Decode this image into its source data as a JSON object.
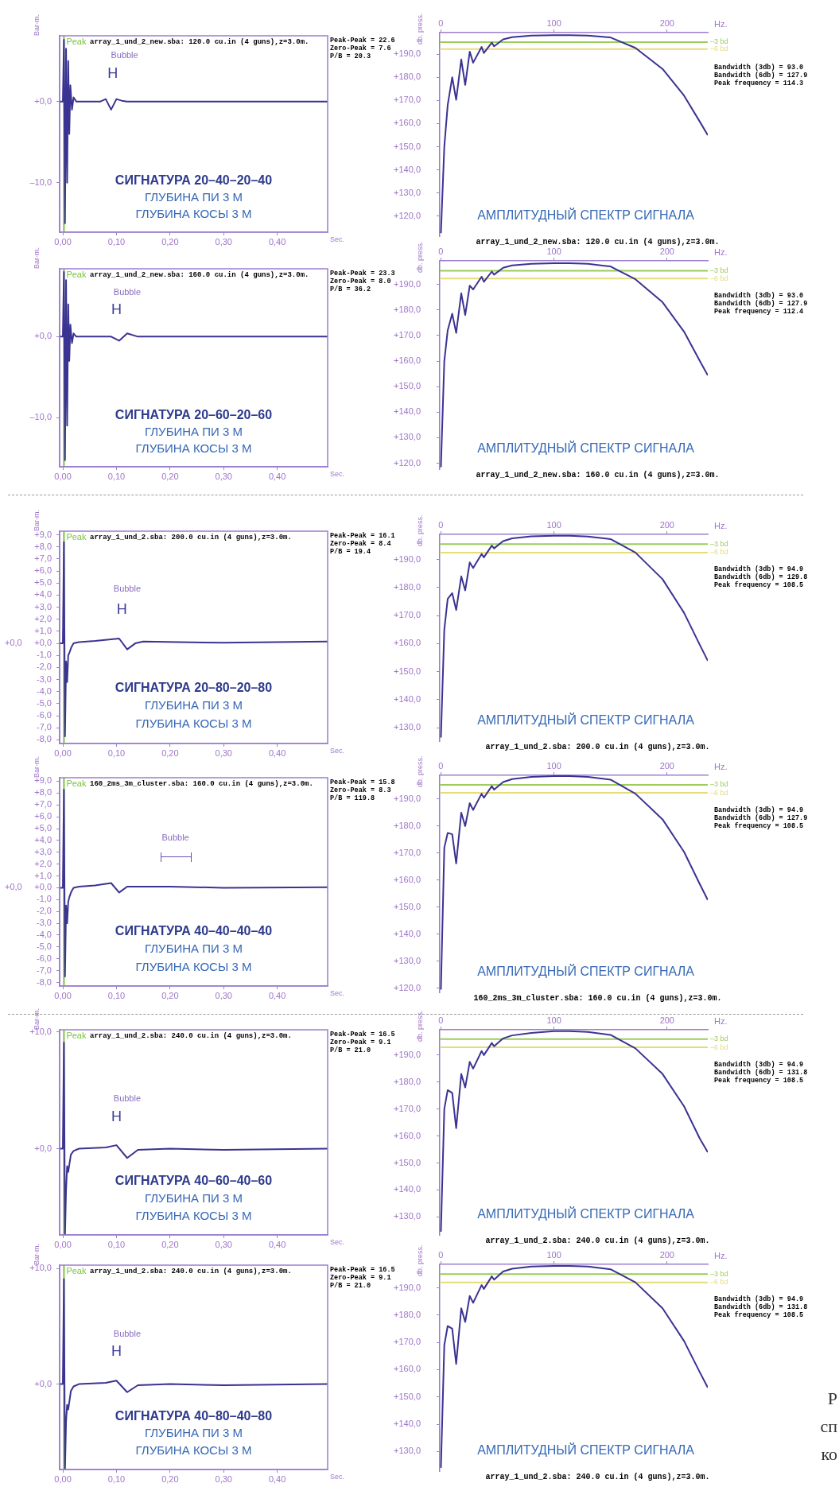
{
  "chart_data": [
    {
      "type": "line",
      "title": "array_1_und_2_new.sba: 120.0 cu.in (4 guns),z=3.0m.",
      "xlabel": "Sec.",
      "ylabel": "Bar-m.",
      "x": [
        -0.006,
        0,
        0.002,
        0.004,
        0.006,
        0.008,
        0.01,
        0.012,
        0.014,
        0.017,
        0.02,
        0.025,
        0.07,
        0.08,
        0.09,
        0.1,
        0.11,
        0.12,
        0.494
      ],
      "series": [
        {
          "color": "#3b3391",
          "values": [
            0,
            0,
            7.6,
            -15,
            6.5,
            -10,
            5,
            -4,
            2,
            -1,
            0.5,
            0,
            0,
            0.3,
            -1,
            0.3,
            0.1,
            0,
            0
          ]
        }
      ],
      "xlim": [
        -0.006,
        0.494
      ],
      "xticks": [
        {
          "value": 0,
          "label": "0,00"
        },
        {
          "value": 0.1,
          "label": "0,10"
        },
        {
          "value": 0.2,
          "label": "0,20"
        },
        {
          "value": 0.3,
          "label": "0,30"
        },
        {
          "value": 0.4,
          "label": "0,40"
        }
      ],
      "ylim": [
        -16.1,
        8.1
      ],
      "yticks": [
        {
          "value": 0,
          "label": "+0,0"
        },
        {
          "value": -10,
          "label": "–10,0"
        }
      ],
      "ref_lines": [
        {
          "axis": "x",
          "value": 0.002,
          "label": "Peak",
          "color": "#7cc242"
        }
      ],
      "annotations": [
        "Peak-Peak = 22.6",
        "Zero-Peak = 7.6",
        "P/B = 20.3",
        "СИГНАТУРА 20–40–20–40",
        "ГЛУБИНА ПИ 3 М",
        "ГЛУБИНА КОСЫ 3 М",
        "Bubble",
        "H"
      ]
    },
    {
      "type": "line",
      "subtitle": "array_1_und_2_new.sba: 120.0 cu.in (4 guns),z=3.0m.",
      "xlabel": "Hz.",
      "ylabel": "db. press.",
      "x": [
        0,
        3,
        6,
        10,
        13.5,
        18,
        21.5,
        25.5,
        28.5,
        36,
        38,
        45,
        47,
        55,
        63,
        80,
        100,
        114,
        130,
        150,
        172,
        196,
        215,
        229,
        236
      ],
      "series": [
        {
          "color": "#3b3391",
          "values": [
            112.7,
            150,
            168,
            180,
            170.3,
            187.7,
            176.7,
            191.1,
            186.3,
            193.1,
            190.5,
            195,
            193.4,
            196.4,
            197.3,
            198,
            198.2,
            198.2,
            198,
            197.2,
            192.7,
            183.6,
            172.1,
            160.8,
            155
          ]
        }
      ],
      "xlim": [
        -1,
        236
      ],
      "xticks": [
        0,
        100,
        200
      ],
      "ylim": [
        111.4,
        199.3
      ],
      "yticks": [
        {
          "value": 120,
          "label": "+120,0"
        },
        {
          "value": 130,
          "label": "+130,0"
        },
        {
          "value": 140,
          "label": "+140,0"
        },
        {
          "value": 150,
          "label": "+150,0"
        },
        {
          "value": 160,
          "label": "+160,0"
        },
        {
          "value": 170,
          "label": "+170,0"
        },
        {
          "value": 180,
          "label": "+180,0"
        },
        {
          "value": 190,
          "label": "+190,0"
        }
      ],
      "ref_lines": [
        {
          "axis": "y",
          "value": 195.2,
          "label": "–3 bd",
          "color": "#9ccc5a"
        },
        {
          "axis": "y",
          "value": 192.2,
          "label": "–6 bd",
          "color": "#e6dc78"
        }
      ],
      "annotations": [
        "Bandwidth (3db) = 93.0",
        "Bandwidth (6db) = 127.9",
        "Peak frequency = 114.3",
        "АМПЛИТУДНЫЙ СПЕКТР СИГНАЛА"
      ]
    },
    {
      "type": "line",
      "title": "array_1_und_2_new.sba: 160.0 cu.in (4 guns),z=3.0m.",
      "xlabel": "Sec.",
      "ylabel": "Bar-m.",
      "x": [
        -0.006,
        0,
        0.002,
        0.004,
        0.006,
        0.008,
        0.01,
        0.012,
        0.014,
        0.017,
        0.02,
        0.025,
        0.09,
        0.105,
        0.12,
        0.14,
        0.494
      ],
      "series": [
        {
          "color": "#3b3391",
          "values": [
            0,
            0,
            8,
            -15.3,
            7,
            -11,
            4,
            -3,
            1.5,
            -0.8,
            0.4,
            0,
            0,
            -0.5,
            0.4,
            0,
            0
          ]
        }
      ],
      "xlim": [
        -0.006,
        0.494
      ],
      "xticks": [
        {
          "value": 0,
          "label": "0,00"
        },
        {
          "value": 0.1,
          "label": "0,10"
        },
        {
          "value": 0.2,
          "label": "0,20"
        },
        {
          "value": 0.3,
          "label": "0,30"
        },
        {
          "value": 0.4,
          "label": "0,40"
        }
      ],
      "ylim": [
        -16.1,
        8.4
      ],
      "yticks": [
        {
          "value": 0,
          "label": "+0,0"
        },
        {
          "value": -10,
          "label": "–10,0"
        }
      ],
      "ref_lines": [
        {
          "axis": "x",
          "value": 0.002,
          "label": "Peak",
          "color": "#7cc242"
        }
      ],
      "annotations": [
        "Peak-Peak = 23.3",
        "Zero-Peak = 8.0",
        "P/B = 36.2",
        "СИГНАТУРА 20–60–20–60",
        "ГЛУБИНА ПИ 3 М",
        "ГЛУБИНА КОСЫ 3 М",
        "Bubble",
        "H"
      ]
    },
    {
      "type": "line",
      "subtitle": "array_1_und_2_new.sba: 160.0 cu.in (4 guns),z=3.0m.",
      "xlabel": "Hz.",
      "ylabel": "db. press.",
      "x": [
        0,
        3,
        6,
        10,
        13.5,
        18,
        21.5,
        25.5,
        28.5,
        36,
        38,
        45,
        47,
        55,
        63,
        80,
        100,
        114,
        130,
        150,
        172,
        196,
        215,
        229,
        236
      ],
      "series": [
        {
          "color": "#3b3391",
          "values": [
            118.5,
            160,
            172,
            178.5,
            171,
            186.5,
            178,
            189.5,
            188,
            193,
            191,
            195,
            193.8,
            196.5,
            197.4,
            198,
            198.3,
            198.3,
            198,
            197,
            192,
            183,
            171.5,
            160,
            154.4
          ]
        }
      ],
      "xlim": [
        -1,
        236
      ],
      "xticks": [
        0,
        100,
        200
      ],
      "ylim": [
        117.7,
        199.2
      ],
      "yticks": [
        {
          "value": 120,
          "label": "+120,0"
        },
        {
          "value": 130,
          "label": "+130,0"
        },
        {
          "value": 140,
          "label": "+140,0"
        },
        {
          "value": 150,
          "label": "+150,0"
        },
        {
          "value": 160,
          "label": "+160,0"
        },
        {
          "value": 170,
          "label": "+170,0"
        },
        {
          "value": 180,
          "label": "+180,0"
        },
        {
          "value": 190,
          "label": "+190,0"
        }
      ],
      "ref_lines": [
        {
          "axis": "y",
          "value": 195.3,
          "label": "–3 bd",
          "color": "#9ccc5a"
        },
        {
          "axis": "y",
          "value": 192.3,
          "label": "–6 bd",
          "color": "#e6dc78"
        }
      ],
      "annotations": [
        "Bandwidth (3db) = 93.0",
        "Bandwidth (6db) = 127.9",
        "Peak frequency = 112.4",
        "АМПЛИТУДНЫЙ СПЕКТР СИГНАЛА"
      ]
    },
    {
      "type": "line",
      "title": "array_1_und_2.sba: 200.0 cu.in (4 guns),z=3.0m.",
      "xlabel": "Sec.",
      "ylabel": "Bar-m.",
      "x": [
        -0.006,
        0,
        0.002,
        0.004,
        0.006,
        0.008,
        0.01,
        0.012,
        0.016,
        0.02,
        0.03,
        0.06,
        0.105,
        0.12,
        0.135,
        0.15,
        0.3,
        0.494
      ],
      "series": [
        {
          "color": "#3b3391",
          "values": [
            0,
            0,
            8.4,
            -7.7,
            -1.5,
            -3.2,
            -1,
            -0.8,
            -0.3,
            0,
            0.1,
            0.2,
            0.4,
            -0.5,
            0,
            0.15,
            0.05,
            0.15
          ]
        }
      ],
      "xlim": [
        -0.006,
        0.494
      ],
      "xticks": [
        {
          "value": 0,
          "label": "0,00"
        },
        {
          "value": 0.1,
          "label": "0,10"
        },
        {
          "value": 0.2,
          "label": "0,20"
        },
        {
          "value": 0.3,
          "label": "0,30"
        },
        {
          "value": 0.4,
          "label": "0,40"
        }
      ],
      "ylim": [
        -8.3,
        9.3
      ],
      "yticks": [
        {
          "value": 9,
          "label": "+9,0"
        },
        {
          "value": 8,
          "label": "+8,0"
        },
        {
          "value": 7,
          "label": "+7,0"
        },
        {
          "value": 6,
          "label": "+6,0"
        },
        {
          "value": 5,
          "label": "+5,0"
        },
        {
          "value": 4,
          "label": "+4,0"
        },
        {
          "value": 3,
          "label": "+3,0"
        },
        {
          "value": 2,
          "label": "+2,0"
        },
        {
          "value": 1,
          "label": "+1,0"
        },
        {
          "value": 0,
          "label": "+0,0"
        },
        {
          "value": -1,
          "label": "-1,0"
        },
        {
          "value": -2,
          "label": "-2,0"
        },
        {
          "value": -3,
          "label": "-3,0"
        },
        {
          "value": -4,
          "label": "-4,0"
        },
        {
          "value": -5,
          "label": "-5,0"
        },
        {
          "value": -6,
          "label": "-6,0"
        },
        {
          "value": -7,
          "label": "-7,0"
        },
        {
          "value": -8,
          "label": "-8,0"
        }
      ],
      "ref_lines": [
        {
          "axis": "x",
          "value": 0.002,
          "label": "Peak",
          "color": "#7cc242"
        }
      ],
      "annotations": [
        "Peak-Peak = 16.1",
        "Zero-Peak = 8.4",
        "P/B = 19.4",
        "СИГНАТУРА 20–80–20–80",
        "ГЛУБИНА ПИ 3 М",
        "ГЛУБИНА КОСЫ 3 М",
        "Bubble",
        "H",
        "+0,0"
      ]
    },
    {
      "type": "line",
      "subtitle": "array_1_und_2.sba: 200.0 cu.in (4 guns),z=3.0m.",
      "xlabel": "Hz.",
      "ylabel": "db. press.",
      "x": [
        0,
        3,
        6,
        10,
        13.5,
        18,
        21.5,
        25.5,
        28.5,
        36,
        38,
        45,
        47,
        55,
        63,
        80,
        100,
        114,
        130,
        150,
        172,
        196,
        215,
        229,
        236
      ],
      "series": [
        {
          "color": "#3b3391",
          "values": [
            126.5,
            165,
            176,
            178,
            172,
            184,
            179,
            189,
            187,
            192,
            190.8,
            195,
            194,
            196.6,
            197.6,
            198.3,
            198.5,
            198.5,
            198.2,
            197.3,
            192.5,
            183,
            171,
            159.5,
            153.9
          ]
        }
      ],
      "xlim": [
        -1,
        236
      ],
      "xticks": [
        0,
        100,
        200
      ],
      "ylim": [
        125.2,
        199
      ],
      "yticks": [
        {
          "value": 130,
          "label": "+130,0"
        },
        {
          "value": 140,
          "label": "+140,0"
        },
        {
          "value": 150,
          "label": "+150,0"
        },
        {
          "value": 160,
          "label": "+160,0"
        },
        {
          "value": 170,
          "label": "+170,0"
        },
        {
          "value": 180,
          "label": "+180,0"
        },
        {
          "value": 190,
          "label": "+190,0"
        }
      ],
      "ref_lines": [
        {
          "axis": "y",
          "value": 195.5,
          "label": "–3 bd",
          "color": "#9ccc5a"
        },
        {
          "axis": "y",
          "value": 192.5,
          "label": "–6 bd",
          "color": "#e6dc78"
        }
      ],
      "annotations": [
        "Bandwidth (3db) = 94.9",
        "Bandwidth (6db) = 129.8",
        "Peak frequency = 108.5",
        "АМПЛИТУДНЫЙ СПЕКТР СИГНАЛА"
      ]
    },
    {
      "type": "line",
      "title": "160_2ms_3m_cluster.sba: 160.0 cu.in (4 guns),z=3.0m.",
      "xlabel": "Sec.",
      "ylabel": "Bar-m.",
      "x": [
        -0.006,
        0,
        0.002,
        0.004,
        0.006,
        0.008,
        0.01,
        0.012,
        0.016,
        0.02,
        0.03,
        0.06,
        0.09,
        0.105,
        0.12,
        0.2,
        0.3,
        0.494
      ],
      "series": [
        {
          "color": "#3b3391",
          "values": [
            0,
            0,
            8.3,
            -7.5,
            -1.5,
            -3,
            -1.2,
            -0.8,
            -0.3,
            0,
            0.1,
            0.2,
            0.4,
            -0.4,
            0.1,
            0.1,
            0,
            0.05
          ]
        }
      ],
      "xlim": [
        -0.006,
        0.494
      ],
      "xticks": [
        {
          "value": 0,
          "label": "0,00"
        },
        {
          "value": 0.1,
          "label": "0,10"
        },
        {
          "value": 0.2,
          "label": "0,20"
        },
        {
          "value": 0.3,
          "label": "0,30"
        },
        {
          "value": 0.4,
          "label": "0,40"
        }
      ],
      "ylim": [
        -8.3,
        9.3
      ],
      "yticks": [
        {
          "value": 9,
          "label": "+9,0"
        },
        {
          "value": 8,
          "label": "+8,0"
        },
        {
          "value": 7,
          "label": "+7,0"
        },
        {
          "value": 6,
          "label": "+6,0"
        },
        {
          "value": 5,
          "label": "+5,0"
        },
        {
          "value": 4,
          "label": "+4,0"
        },
        {
          "value": 3,
          "label": "+3,0"
        },
        {
          "value": 2,
          "label": "+2,0"
        },
        {
          "value": 1,
          "label": "+1,0"
        },
        {
          "value": 0,
          "label": "+0,0"
        },
        {
          "value": -1,
          "label": "-1,0"
        },
        {
          "value": -2,
          "label": "-2,0"
        },
        {
          "value": -3,
          "label": "-3,0"
        },
        {
          "value": -4,
          "label": "-4,0"
        },
        {
          "value": -5,
          "label": "-5,0"
        },
        {
          "value": -6,
          "label": "-6,0"
        },
        {
          "value": -7,
          "label": "-7,0"
        },
        {
          "value": -8,
          "label": "-8,0"
        }
      ],
      "ref_lines": [
        {
          "axis": "x",
          "value": 0.002,
          "label": "Peak",
          "color": "#7cc242"
        }
      ],
      "annotations": [
        "Peak-Peak = 15.8",
        "Zero-Peak = 8.3",
        "P/B = 119.8",
        "СИГНАТУРА 40–40–40–40",
        "ГЛУБИНА ПИ 3 М",
        "ГЛУБИНА КОСЫ 3 М",
        "Bubble",
        "+0,0"
      ]
    },
    {
      "type": "line",
      "subtitle": "160_2ms_3m_cluster.sba: 160.0 cu.in (4 guns),z=3.0m.",
      "xlabel": "Hz.",
      "ylabel": "db. press.",
      "x": [
        0,
        3,
        6,
        10,
        13.5,
        18,
        21.5,
        25.5,
        28.5,
        36,
        38,
        45,
        47,
        55,
        63,
        80,
        100,
        114,
        130,
        150,
        172,
        196,
        215,
        229,
        236
      ],
      "series": [
        {
          "color": "#3b3391",
          "values": [
            119.5,
            172,
            177.5,
            177,
            166.2,
            185,
            180,
            188.5,
            186,
            192,
            190.5,
            194.8,
            193.5,
            196.3,
            197.4,
            198.2,
            198.5,
            198.5,
            198.2,
            197.2,
            192,
            182.5,
            170.5,
            158.5,
            152.7
          ]
        }
      ],
      "xlim": [
        -1,
        236
      ],
      "xticks": [
        0,
        100,
        200
      ],
      "ylim": [
        118.5,
        198.8
      ],
      "yticks": [
        {
          "value": 120,
          "label": "+120,0"
        },
        {
          "value": 130,
          "label": "+130,0"
        },
        {
          "value": 140,
          "label": "+140,0"
        },
        {
          "value": 150,
          "label": "+150,0"
        },
        {
          "value": 160,
          "label": "+160,0"
        },
        {
          "value": 170,
          "label": "+170,0"
        },
        {
          "value": 180,
          "label": "+180,0"
        },
        {
          "value": 190,
          "label": "+190,0"
        }
      ],
      "ref_lines": [
        {
          "axis": "y",
          "value": 195.3,
          "label": "–3 bd",
          "color": "#9ccc5a"
        },
        {
          "axis": "y",
          "value": 192.3,
          "label": "–6 bd",
          "color": "#e6dc78"
        }
      ],
      "annotations": [
        "Bandwidth (3db) = 94.9",
        "Bandwidth (6db) = 127.9",
        "Peak frequency = 108.5",
        "АМПЛИТУДНЫЙ СПЕКТР СИГНАЛА"
      ]
    },
    {
      "type": "line",
      "title": "array_1_und_2.sba: 240.0 cu.in (4 guns),z=3.0m.",
      "xlabel": "Sec.",
      "ylabel": "Bar-m.",
      "x": [
        -0.006,
        0,
        0.002,
        0.004,
        0.006,
        0.008,
        0.01,
        0.015,
        0.02,
        0.03,
        0.08,
        0.1,
        0.12,
        0.14,
        0.2,
        0.3,
        0.494
      ],
      "series": [
        {
          "color": "#3b3391",
          "values": [
            0,
            0,
            9.1,
            -7.4,
            -3.5,
            -1.5,
            -2,
            -0.5,
            -0.2,
            0,
            0.1,
            0.3,
            -0.8,
            -0.1,
            0,
            -0.1,
            0
          ]
        }
      ],
      "xlim": [
        -0.006,
        0.494
      ],
      "xticks": [
        {
          "value": 0,
          "label": "0,00"
        },
        {
          "value": 0.1,
          "label": "0,10"
        },
        {
          "value": 0.2,
          "label": "0,20"
        },
        {
          "value": 0.3,
          "label": "0,30"
        },
        {
          "value": 0.4,
          "label": "0,40"
        }
      ],
      "ylim": [
        -7.4,
        10.2
      ],
      "yticks": [
        {
          "value": 10,
          "label": "+10,0"
        },
        {
          "value": 0,
          "label": "+0,0"
        }
      ],
      "ref_lines": [
        {
          "axis": "x",
          "value": 0.002,
          "label": "Peak",
          "color": "#7cc242"
        }
      ],
      "annotations": [
        "Peak-Peak = 16.5",
        "Zero-Peak = 9.1",
        "P/B = 21.0",
        "СИГНАТУРА 40–60–40–60",
        "ГЛУБИНА ПИ 3 М",
        "ГЛУБИНА КОСЫ 3 М",
        "Bubble",
        "H"
      ]
    },
    {
      "type": "line",
      "subtitle": "array_1_und_2.sba: 240.0 cu.in (4 guns),z=3.0m.",
      "xlabel": "Hz.",
      "ylabel": "db. press.",
      "x": [
        0,
        3,
        6,
        10,
        13.5,
        18,
        21.5,
        25.5,
        28.5,
        36,
        38,
        45,
        47,
        55,
        63,
        80,
        100,
        114,
        130,
        150,
        172,
        196,
        215,
        229,
        236
      ],
      "series": [
        {
          "color": "#3b3391",
          "values": [
            124.5,
            170,
            177,
            176,
            162.9,
            183,
            178,
            187.5,
            185,
            191.5,
            190,
            194.5,
            193.3,
            196.2,
            197.3,
            198.2,
            198.9,
            198.9,
            198.6,
            197.5,
            192.5,
            183,
            171,
            159,
            154
          ]
        }
      ],
      "xlim": [
        -1,
        236
      ],
      "xticks": [
        0,
        100,
        200
      ],
      "ylim": [
        123.3,
        199.4
      ],
      "yticks": [
        {
          "value": 130,
          "label": "+130,0"
        },
        {
          "value": 140,
          "label": "+140,0"
        },
        {
          "value": 150,
          "label": "+150,0"
        },
        {
          "value": 160,
          "label": "+160,0"
        },
        {
          "value": 170,
          "label": "+170,0"
        },
        {
          "value": 180,
          "label": "+180,0"
        },
        {
          "value": 190,
          "label": "+190,0"
        }
      ],
      "ref_lines": [
        {
          "axis": "y",
          "value": 195.9,
          "label": "–3 bd",
          "color": "#9ccc5a"
        },
        {
          "axis": "y",
          "value": 192.9,
          "label": "–6 bd",
          "color": "#e6dc78"
        }
      ],
      "annotations": [
        "Bandwidth (3db) = 94.9",
        "Bandwidth (6db) = 131.8",
        "Peak frequency = 108.5",
        "АМПЛИТУДНЫЙ СПЕКТР СИГНАЛА"
      ]
    },
    {
      "type": "line",
      "title": "array_1_und_2.sba: 240.0 cu.in (4 guns),z=3.0m.",
      "xlabel": "Sec.",
      "ylabel": "Bar-m.",
      "x": [
        -0.006,
        0,
        0.002,
        0.004,
        0.006,
        0.008,
        0.01,
        0.015,
        0.02,
        0.03,
        0.08,
        0.1,
        0.12,
        0.14,
        0.2,
        0.3,
        0.494
      ],
      "series": [
        {
          "color": "#3b3391",
          "values": [
            0,
            0,
            9.1,
            -7.4,
            -3.2,
            -1.8,
            -2.2,
            -0.6,
            -0.2,
            0,
            0.1,
            0.3,
            -0.7,
            -0.1,
            0,
            -0.1,
            0
          ]
        }
      ],
      "xlim": [
        -0.006,
        0.494
      ],
      "xticks": [
        {
          "value": 0,
          "label": "0,00"
        },
        {
          "value": 0.1,
          "label": "0,10"
        },
        {
          "value": 0.2,
          "label": "0,20"
        },
        {
          "value": 0.3,
          "label": "0,30"
        },
        {
          "value": 0.4,
          "label": "0,40"
        }
      ],
      "ylim": [
        -7.4,
        10.3
      ],
      "yticks": [
        {
          "value": 10,
          "label": "+10,0"
        },
        {
          "value": 0,
          "label": "+0,0"
        }
      ],
      "ref_lines": [
        {
          "axis": "x",
          "value": 0.002,
          "label": "Peak",
          "color": "#7cc242"
        }
      ],
      "annotations": [
        "Peak-Peak = 16.5",
        "Zero-Peak = 9.1",
        "P/B = 21.0",
        "СИГНАТУРА 40–80–40–80",
        "ГЛУБИНА ПИ 3 М",
        "ГЛУБИНА КОСЫ 3 М",
        "Bubble",
        "H"
      ]
    },
    {
      "type": "line",
      "subtitle": "array_1_und_2.sba: 240.0 cu.in (4 guns),z=3.0m.",
      "xlabel": "Hz.",
      "ylabel": "db. press.",
      "x": [
        0,
        3,
        6,
        10,
        13.5,
        18,
        21.5,
        25.5,
        28.5,
        36,
        38,
        45,
        47,
        55,
        63,
        80,
        100,
        114,
        130,
        150,
        172,
        196,
        215,
        229,
        236
      ],
      "series": [
        {
          "color": "#3b3391",
          "values": [
            124,
            169,
            176,
            175,
            162.1,
            182.5,
            177.5,
            187,
            184.5,
            191,
            189.6,
            194.2,
            193,
            196,
            197,
            197.8,
            198,
            198,
            197.8,
            196.8,
            192,
            182.5,
            170.5,
            159,
            153.4
          ]
        }
      ],
      "xlim": [
        -1,
        236
      ],
      "xticks": [
        0,
        100,
        200
      ],
      "ylim": [
        122.8,
        198.6
      ],
      "yticks": [
        {
          "value": 130,
          "label": "+130,0"
        },
        {
          "value": 140,
          "label": "+140,0"
        },
        {
          "value": 150,
          "label": "+150,0"
        },
        {
          "value": 160,
          "label": "+160,0"
        },
        {
          "value": 170,
          "label": "+170,0"
        },
        {
          "value": 180,
          "label": "+180,0"
        },
        {
          "value": 190,
          "label": "+190,0"
        }
      ],
      "ref_lines": [
        {
          "axis": "y",
          "value": 195,
          "label": "–3 bd",
          "color": "#9ccc5a"
        },
        {
          "axis": "y",
          "value": 192,
          "label": "–6 bd",
          "color": "#e6dc78"
        }
      ],
      "annotations": [
        "Bandwidth (3db) = 94.9",
        "Bandwidth (6db) = 131.8",
        "Peak frequency = 108.5",
        "АМПЛИТУДНЫЙ СПЕКТР СИГНАЛА",
        "Р",
        "сп",
        "ко"
      ]
    }
  ]
}
